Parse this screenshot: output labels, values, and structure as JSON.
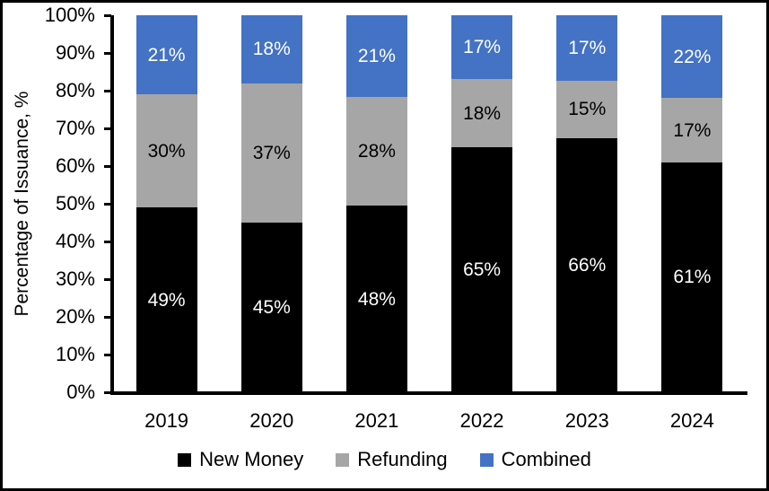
{
  "chart_data": {
    "type": "bar",
    "subtype": "stacked-percent",
    "title": "",
    "ylabel": "Percentage of Issuance, %",
    "xlabel": "",
    "categories": [
      "2019",
      "2020",
      "2021",
      "2022",
      "2023",
      "2024"
    ],
    "series": [
      {
        "name": "New Money",
        "color": "#000000",
        "label_color": "#ffffff",
        "values": [
          49,
          45,
          48,
          65,
          66,
          61
        ]
      },
      {
        "name": "Refunding",
        "color": "#a6a6a6",
        "label_color": "#000000",
        "values": [
          30,
          37,
          28,
          18,
          15,
          17
        ]
      },
      {
        "name": "Combined",
        "color": "#4472c4",
        "label_color": "#ffffff",
        "values": [
          21,
          18,
          21,
          17,
          17,
          22
        ]
      }
    ],
    "value_suffix": "%",
    "y_ticks": [
      "0%",
      "10%",
      "20%",
      "30%",
      "40%",
      "50%",
      "60%",
      "70%",
      "80%",
      "90%",
      "100%"
    ],
    "ylim": [
      0,
      100
    ],
    "grid": false,
    "legend_position": "bottom",
    "axis_color": "#000000",
    "background_color": "#ffffff",
    "border_color": "#000000"
  }
}
